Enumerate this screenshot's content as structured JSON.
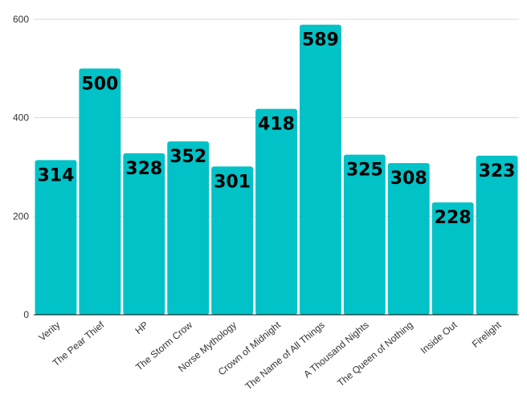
{
  "chart_data": {
    "type": "bar",
    "categories": [
      "Verity",
      "The Pear Thief",
      "HP",
      "The Storm Crow",
      "Norse Mythology",
      "Crown of Midnight",
      "The Name of All Things",
      "A Thousand Nights",
      "The Queen of Nothing",
      "Inside Out",
      "Firelight"
    ],
    "values": [
      314,
      500,
      328,
      352,
      301,
      418,
      589,
      325,
      308,
      228,
      323
    ],
    "yticks": [
      0,
      200,
      400,
      600
    ],
    "ylim": [
      0,
      600
    ],
    "grid": true,
    "bar_color": "#00c2c7",
    "label_color": "#000000",
    "grid_color": "#d9d9d9",
    "axis_color": "#000000"
  }
}
